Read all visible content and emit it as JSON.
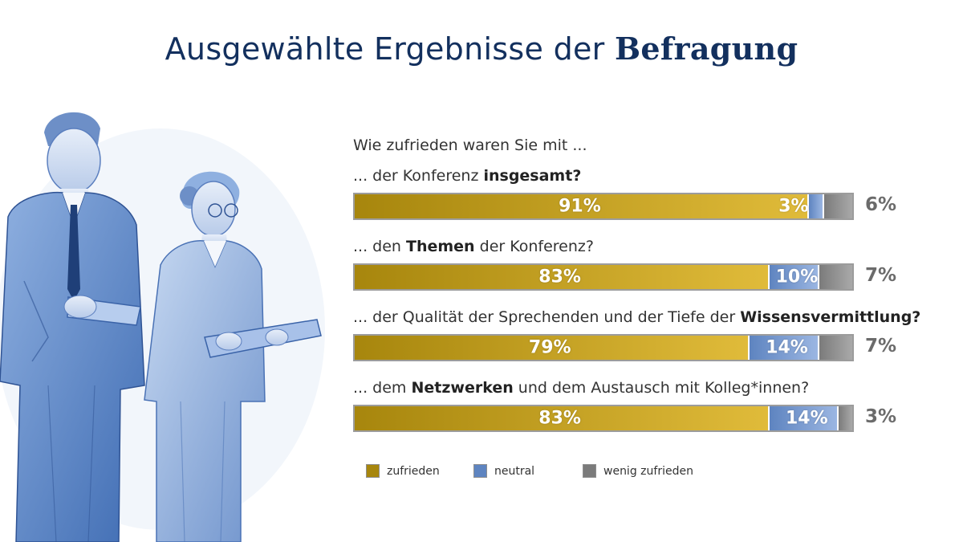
{
  "title": {
    "part1": "Ausgewählte Ergebnisse der ",
    "bold": "Befragung"
  },
  "intro": "Wie zufrieden waren Sie mit ...",
  "colors": {
    "zufrieden_dark": "#a7860d",
    "zufrieden_light": "#e0bb3a",
    "neutral": "#5e84c0",
    "neutral_light": "#9bb6e2",
    "wenig_zufrieden": "#7b7b7b",
    "wenig_light": "#a9a9a9",
    "title": "#13305e"
  },
  "chart_data": {
    "type": "bar",
    "orientation": "horizontal",
    "stacked": true,
    "unit": "%",
    "series_names": [
      "zufrieden",
      "neutral",
      "wenig zufrieden"
    ],
    "questions": [
      {
        "parts": [
          {
            "text": "... der Konferenz ",
            "bold": false
          },
          {
            "text": "insgesamt?",
            "bold": true
          }
        ],
        "values": [
          91,
          3,
          6
        ],
        "labels": [
          "91%",
          "3%",
          "6%"
        ]
      },
      {
        "parts": [
          {
            "text": "... den ",
            "bold": false
          },
          {
            "text": "Themen",
            "bold": true
          },
          {
            "text": " der Konferenz?",
            "bold": false
          }
        ],
        "values": [
          83,
          10,
          7
        ],
        "labels": [
          "83%",
          "10%",
          "7%"
        ]
      },
      {
        "parts": [
          {
            "text": "... der Qualität der Sprechenden und der Tiefe der ",
            "bold": false
          },
          {
            "text": "Wissensvermittlung?",
            "bold": true
          }
        ],
        "values": [
          79,
          14,
          7
        ],
        "labels": [
          "79%",
          "14%",
          "7%"
        ]
      },
      {
        "parts": [
          {
            "text": "... dem ",
            "bold": false
          },
          {
            "text": "Netzwerken",
            "bold": true
          },
          {
            "text": " und dem Austausch mit Kolleg*innen?",
            "bold": false
          }
        ],
        "values": [
          83,
          14,
          3
        ],
        "labels": [
          "83%",
          "14%",
          "3%"
        ]
      }
    ],
    "legend": {
      "placement": "bottom",
      "items": [
        {
          "label": "zufrieden",
          "color": "#a7860d"
        },
        {
          "label": "neutral",
          "color": "#5e84c0"
        },
        {
          "label": "wenig zufrieden",
          "color": "#7b7b7b"
        }
      ]
    }
  }
}
